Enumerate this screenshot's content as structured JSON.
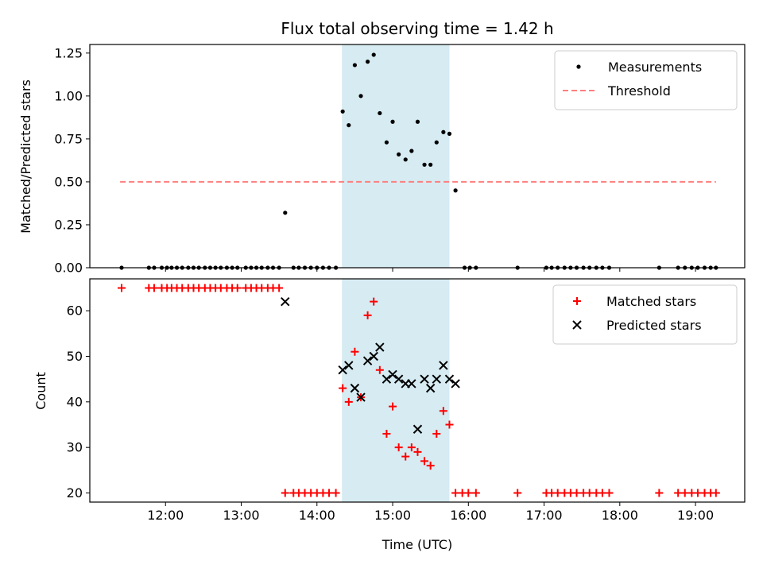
{
  "chart_data": {
    "title": "Flux total observing time = 1.42 h",
    "xlabel": "Time (UTC)",
    "x_unit": "hours UTC",
    "xlim": [
      11.0,
      19.65
    ],
    "xticks": [
      {
        "value": 12,
        "label": "12:00"
      },
      {
        "value": 13,
        "label": "13:00"
      },
      {
        "value": 14,
        "label": "14:00"
      },
      {
        "value": 15,
        "label": "15:00"
      },
      {
        "value": 16,
        "label": "16:00"
      },
      {
        "value": 17,
        "label": "17:00"
      },
      {
        "value": 18,
        "label": "18:00"
      },
      {
        "value": 19,
        "label": "19:00"
      }
    ],
    "shaded_span": {
      "start": 14.33,
      "end": 15.75,
      "color": "#add8e6"
    },
    "panels": [
      {
        "type": "scatter",
        "ylabel": "Matched/Predicted stars",
        "ylim": [
          0,
          1.3
        ],
        "yticks": [
          "0.00",
          "0.25",
          "0.50",
          "0.75",
          "1.00",
          "1.25"
        ],
        "legend_position": "upper-right",
        "threshold": {
          "name": "Threshold",
          "value": 0.5,
          "x_range": [
            11.4,
            19.27
          ],
          "color": "#ff7f7f"
        },
        "series": [
          {
            "name": "Measurements",
            "color": "#000000",
            "marker": "dot",
            "points": [
              [
                11.42,
                0
              ],
              [
                11.78,
                0
              ],
              [
                11.85,
                0
              ],
              [
                11.95,
                0
              ],
              [
                12.02,
                0
              ],
              [
                12.08,
                0
              ],
              [
                12.15,
                0
              ],
              [
                12.22,
                0
              ],
              [
                12.3,
                0
              ],
              [
                12.37,
                0
              ],
              [
                12.44,
                0
              ],
              [
                12.52,
                0
              ],
              [
                12.59,
                0
              ],
              [
                12.66,
                0
              ],
              [
                12.73,
                0
              ],
              [
                12.81,
                0
              ],
              [
                12.88,
                0
              ],
              [
                12.95,
                0
              ],
              [
                13.06,
                0
              ],
              [
                13.13,
                0
              ],
              [
                13.2,
                0
              ],
              [
                13.27,
                0
              ],
              [
                13.35,
                0
              ],
              [
                13.42,
                0
              ],
              [
                13.5,
                0
              ],
              [
                13.58,
                0.32
              ],
              [
                13.69,
                0
              ],
              [
                13.76,
                0
              ],
              [
                13.84,
                0
              ],
              [
                13.92,
                0
              ],
              [
                14.0,
                0
              ],
              [
                14.08,
                0
              ],
              [
                14.16,
                0
              ],
              [
                14.25,
                0
              ],
              [
                14.34,
                0.91
              ],
              [
                14.42,
                0.83
              ],
              [
                14.5,
                1.18
              ],
              [
                14.58,
                1.0
              ],
              [
                14.67,
                1.2
              ],
              [
                14.75,
                1.24
              ],
              [
                14.83,
                0.9
              ],
              [
                14.92,
                0.73
              ],
              [
                15.0,
                0.85
              ],
              [
                15.08,
                0.66
              ],
              [
                15.17,
                0.63
              ],
              [
                15.25,
                0.68
              ],
              [
                15.33,
                0.85
              ],
              [
                15.42,
                0.6
              ],
              [
                15.5,
                0.6
              ],
              [
                15.58,
                0.73
              ],
              [
                15.67,
                0.79
              ],
              [
                15.75,
                0.78
              ],
              [
                15.83,
                0.45
              ],
              [
                15.95,
                0
              ],
              [
                16.02,
                0
              ],
              [
                16.1,
                0
              ],
              [
                16.65,
                0
              ],
              [
                17.03,
                0
              ],
              [
                17.1,
                0
              ],
              [
                17.18,
                0
              ],
              [
                17.27,
                0
              ],
              [
                17.35,
                0
              ],
              [
                17.43,
                0
              ],
              [
                17.52,
                0
              ],
              [
                17.6,
                0
              ],
              [
                17.69,
                0
              ],
              [
                17.77,
                0
              ],
              [
                17.86,
                0
              ],
              [
                18.52,
                0
              ],
              [
                18.77,
                0
              ],
              [
                18.86,
                0
              ],
              [
                18.95,
                0
              ],
              [
                19.03,
                0
              ],
              [
                19.12,
                0
              ],
              [
                19.2,
                0
              ],
              [
                19.27,
                0
              ]
            ]
          }
        ]
      },
      {
        "type": "scatter",
        "ylabel": "Count",
        "ylim": [
          18,
          67
        ],
        "yticks": [
          "20",
          "30",
          "40",
          "50",
          "60"
        ],
        "legend_position": "upper-right",
        "series": [
          {
            "name": "Matched stars",
            "color": "#ff0000",
            "marker": "plus",
            "points": [
              [
                11.42,
                65
              ],
              [
                11.78,
                65
              ],
              [
                11.85,
                65
              ],
              [
                11.95,
                65
              ],
              [
                12.02,
                65
              ],
              [
                12.08,
                65
              ],
              [
                12.15,
                65
              ],
              [
                12.22,
                65
              ],
              [
                12.3,
                65
              ],
              [
                12.37,
                65
              ],
              [
                12.44,
                65
              ],
              [
                12.52,
                65
              ],
              [
                12.59,
                65
              ],
              [
                12.66,
                65
              ],
              [
                12.73,
                65
              ],
              [
                12.81,
                65
              ],
              [
                12.88,
                65
              ],
              [
                12.95,
                65
              ],
              [
                13.06,
                65
              ],
              [
                13.13,
                65
              ],
              [
                13.2,
                65
              ],
              [
                13.27,
                65
              ],
              [
                13.35,
                65
              ],
              [
                13.42,
                65
              ],
              [
                13.5,
                65
              ],
              [
                13.58,
                20
              ],
              [
                13.69,
                20
              ],
              [
                13.76,
                20
              ],
              [
                13.84,
                20
              ],
              [
                13.92,
                20
              ],
              [
                14.0,
                20
              ],
              [
                14.08,
                20
              ],
              [
                14.16,
                20
              ],
              [
                14.25,
                20
              ],
              [
                14.34,
                43
              ],
              [
                14.42,
                40
              ],
              [
                14.5,
                51
              ],
              [
                14.58,
                41
              ],
              [
                14.67,
                59
              ],
              [
                14.75,
                62
              ],
              [
                14.83,
                47
              ],
              [
                14.92,
                33
              ],
              [
                15.0,
                39
              ],
              [
                15.08,
                30
              ],
              [
                15.17,
                28
              ],
              [
                15.25,
                30
              ],
              [
                15.33,
                29
              ],
              [
                15.42,
                27
              ],
              [
                15.5,
                26
              ],
              [
                15.58,
                33
              ],
              [
                15.67,
                38
              ],
              [
                15.75,
                35
              ],
              [
                15.83,
                20
              ],
              [
                15.92,
                20
              ],
              [
                16.0,
                20
              ],
              [
                16.1,
                20
              ],
              [
                16.65,
                20
              ],
              [
                17.03,
                20
              ],
              [
                17.1,
                20
              ],
              [
                17.18,
                20
              ],
              [
                17.27,
                20
              ],
              [
                17.35,
                20
              ],
              [
                17.43,
                20
              ],
              [
                17.52,
                20
              ],
              [
                17.6,
                20
              ],
              [
                17.69,
                20
              ],
              [
                17.77,
                20
              ],
              [
                17.86,
                20
              ],
              [
                18.52,
                20
              ],
              [
                18.77,
                20
              ],
              [
                18.86,
                20
              ],
              [
                18.95,
                20
              ],
              [
                19.03,
                20
              ],
              [
                19.12,
                20
              ],
              [
                19.2,
                20
              ],
              [
                19.27,
                20
              ]
            ]
          },
          {
            "name": "Predicted stars",
            "color": "#000000",
            "marker": "x",
            "points": [
              [
                13.58,
                62
              ],
              [
                14.34,
                47
              ],
              [
                14.42,
                48
              ],
              [
                14.5,
                43
              ],
              [
                14.58,
                41
              ],
              [
                14.67,
                49
              ],
              [
                14.75,
                50
              ],
              [
                14.83,
                52
              ],
              [
                14.92,
                45
              ],
              [
                15.0,
                46
              ],
              [
                15.08,
                45
              ],
              [
                15.17,
                44
              ],
              [
                15.25,
                44
              ],
              [
                15.33,
                34
              ],
              [
                15.42,
                45
              ],
              [
                15.5,
                43
              ],
              [
                15.58,
                45
              ],
              [
                15.67,
                48
              ],
              [
                15.75,
                45
              ],
              [
                15.83,
                44
              ]
            ]
          }
        ]
      }
    ]
  }
}
